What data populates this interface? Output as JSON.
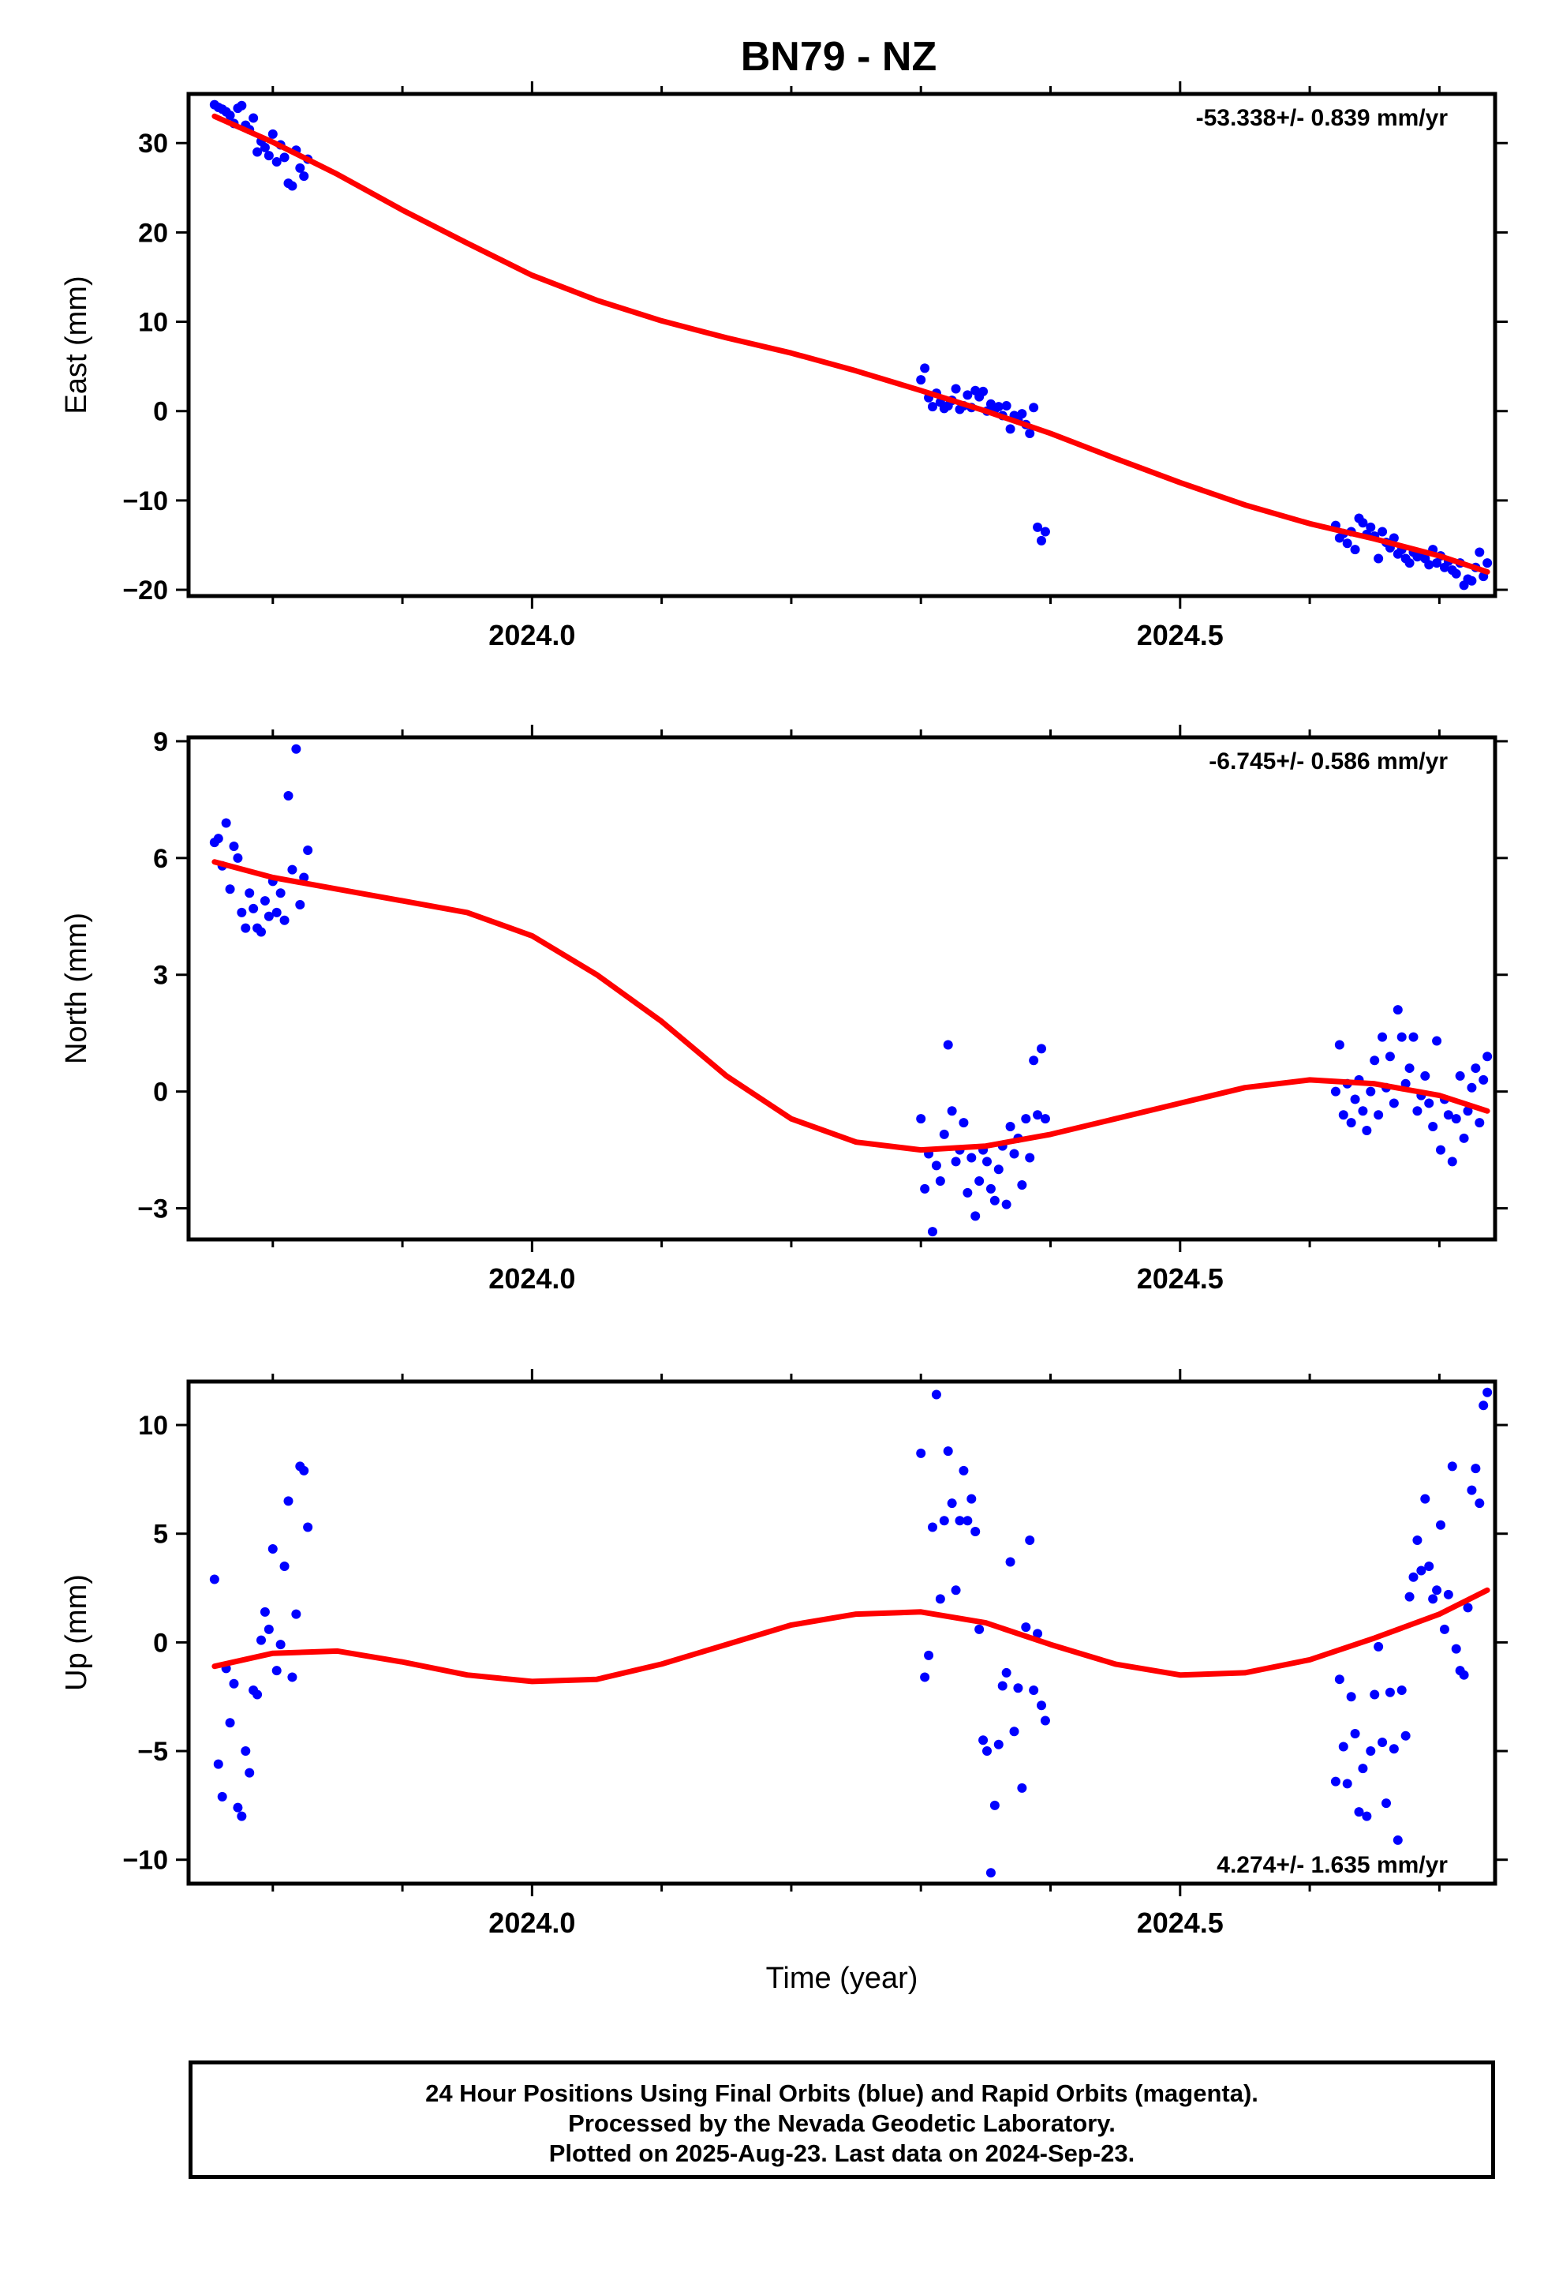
{
  "title": "BN79 - NZ",
  "footer": {
    "line1": "24 Hour Positions Using Final Orbits (blue) and Rapid Orbits (magenta).",
    "line2": "Processed by the Nevada Geodetic Laboratory.",
    "line3": "Plotted on 2025-Aug-23. Last data on 2024-Sep-23."
  },
  "colors": {
    "points": "#0000ff",
    "fit": "#ff0000",
    "axes": "#000000"
  },
  "chart_data": [
    {
      "type": "scatter",
      "ylabel": "East (mm)",
      "xlabel": "",
      "rate_label": "-53.338+/- 0.839 mm/yr",
      "rate_position": "top-right",
      "xlim": [
        2023.735,
        2024.743
      ],
      "ylim": [
        -20.7,
        35.5
      ],
      "xticks": [
        2024.0,
        2024.5
      ],
      "xtick_labels": [
        "2024.0",
        "2024.5"
      ],
      "yticks": [
        30,
        20,
        10,
        0,
        -10,
        -20
      ],
      "ytick_labels": [
        "30",
        "20",
        "10",
        "0",
        "−10",
        "−20"
      ],
      "x": [
        2023.755,
        2023.758,
        2023.761,
        2023.764,
        2023.767,
        2023.77,
        2023.773,
        2023.776,
        2023.779,
        2023.782,
        2023.785,
        2023.788,
        2023.791,
        2023.794,
        2023.797,
        2023.8,
        2023.803,
        2023.806,
        2023.809,
        2023.812,
        2023.815,
        2023.818,
        2023.821,
        2023.824,
        2023.827,
        2024.3,
        2024.303,
        2024.306,
        2024.309,
        2024.312,
        2024.315,
        2024.318,
        2024.321,
        2024.324,
        2024.327,
        2024.33,
        2024.333,
        2024.336,
        2024.339,
        2024.342,
        2024.345,
        2024.348,
        2024.351,
        2024.354,
        2024.357,
        2024.36,
        2024.363,
        2024.366,
        2024.369,
        2024.372,
        2024.375,
        2024.378,
        2024.381,
        2024.384,
        2024.387,
        2024.39,
        2024.393,
        2024.396,
        2024.62,
        2024.623,
        2024.626,
        2024.629,
        2024.632,
        2024.635,
        2024.638,
        2024.641,
        2024.644,
        2024.647,
        2024.65,
        2024.653,
        2024.656,
        2024.659,
        2024.662,
        2024.665,
        2024.668,
        2024.671,
        2024.674,
        2024.677,
        2024.68,
        2024.683,
        2024.686,
        2024.689,
        2024.692,
        2024.695,
        2024.698,
        2024.701,
        2024.704,
        2024.707,
        2024.71,
        2024.713,
        2024.716,
        2024.719,
        2024.722,
        2024.725,
        2024.728,
        2024.731,
        2024.734,
        2024.737
      ],
      "y": [
        34.3,
        34.0,
        33.8,
        33.5,
        33.1,
        32.2,
        33.9,
        34.2,
        32.0,
        31.5,
        32.8,
        29.0,
        30.2,
        29.5,
        28.6,
        31.0,
        27.9,
        29.8,
        28.4,
        25.5,
        25.2,
        29.2,
        27.2,
        26.3,
        28.2,
        3.5,
        4.8,
        1.5,
        0.5,
        2.0,
        1.0,
        0.3,
        0.6,
        1.2,
        2.5,
        0.2,
        0.6,
        1.8,
        0.4,
        2.3,
        1.6,
        2.2,
        0.0,
        0.8,
        0.2,
        0.5,
        -0.5,
        0.6,
        -2.0,
        -0.5,
        -1.0,
        -0.3,
        -1.5,
        -2.5,
        0.4,
        -13.0,
        -14.5,
        -13.5,
        -12.8,
        -14.2,
        -13.7,
        -14.8,
        -13.5,
        -15.5,
        -12.0,
        -12.5,
        -13.8,
        -13.0,
        -14.0,
        -16.5,
        -13.5,
        -14.7,
        -15.3,
        -14.2,
        -16.0,
        -15.5,
        -16.5,
        -17.0,
        -15.8,
        -16.3,
        -16.2,
        -16.5,
        -17.2,
        -15.5,
        -17.0,
        -16.2,
        -17.5,
        -16.8,
        -17.8,
        -18.2,
        -17.0,
        -19.5,
        -18.8,
        -19.0,
        -17.5,
        -15.8,
        -18.5,
        -17.0
      ],
      "fit_x": [
        2023.755,
        2023.8,
        2023.85,
        2023.9,
        2023.95,
        2024.0,
        2024.05,
        2024.1,
        2024.15,
        2024.2,
        2024.25,
        2024.3,
        2024.35,
        2024.4,
        2024.45,
        2024.5,
        2024.55,
        2024.6,
        2024.65,
        2024.7,
        2024.737
      ],
      "fit_y": [
        33.0,
        30.1,
        26.5,
        22.5,
        18.8,
        15.2,
        12.4,
        10.1,
        8.2,
        6.5,
        4.5,
        2.3,
        0.0,
        -2.5,
        -5.3,
        -8.0,
        -10.5,
        -12.6,
        -14.3,
        -16.2,
        -18.0
      ]
    },
    {
      "type": "scatter",
      "ylabel": "North (mm)",
      "xlabel": "",
      "rate_label": "-6.745+/- 0.586 mm/yr",
      "rate_position": "top-right",
      "xlim": [
        2023.735,
        2024.743
      ],
      "ylim": [
        -3.8,
        9.1
      ],
      "xticks": [
        2024.0,
        2024.5
      ],
      "xtick_labels": [
        "2024.0",
        "2024.5"
      ],
      "yticks": [
        9,
        6,
        3,
        0,
        -3
      ],
      "ytick_labels": [
        "9",
        "6",
        "3",
        "0",
        "−3"
      ],
      "x": [
        2023.755,
        2023.758,
        2023.761,
        2023.764,
        2023.767,
        2023.77,
        2023.773,
        2023.776,
        2023.779,
        2023.782,
        2023.785,
        2023.788,
        2023.791,
        2023.794,
        2023.797,
        2023.8,
        2023.803,
        2023.806,
        2023.809,
        2023.812,
        2023.815,
        2023.818,
        2023.821,
        2023.824,
        2023.827,
        2024.3,
        2024.303,
        2024.306,
        2024.309,
        2024.312,
        2024.315,
        2024.318,
        2024.321,
        2024.324,
        2024.327,
        2024.33,
        2024.333,
        2024.336,
        2024.339,
        2024.342,
        2024.345,
        2024.348,
        2024.351,
        2024.354,
        2024.357,
        2024.36,
        2024.363,
        2024.366,
        2024.369,
        2024.372,
        2024.375,
        2024.378,
        2024.381,
        2024.384,
        2024.387,
        2024.39,
        2024.393,
        2024.396,
        2024.62,
        2024.623,
        2024.626,
        2024.629,
        2024.632,
        2024.635,
        2024.638,
        2024.641,
        2024.644,
        2024.647,
        2024.65,
        2024.653,
        2024.656,
        2024.659,
        2024.662,
        2024.665,
        2024.668,
        2024.671,
        2024.674,
        2024.677,
        2024.68,
        2024.683,
        2024.686,
        2024.689,
        2024.692,
        2024.695,
        2024.698,
        2024.701,
        2024.704,
        2024.707,
        2024.71,
        2024.713,
        2024.716,
        2024.719,
        2024.722,
        2024.725,
        2024.728,
        2024.731,
        2024.734,
        2024.737
      ],
      "y": [
        6.4,
        6.5,
        5.8,
        6.9,
        5.2,
        6.3,
        6.0,
        4.6,
        4.2,
        5.1,
        4.7,
        4.2,
        4.1,
        4.9,
        4.5,
        5.4,
        4.6,
        5.1,
        4.4,
        7.6,
        5.7,
        8.8,
        4.8,
        5.5,
        6.2,
        -0.7,
        -2.5,
        -1.6,
        -3.6,
        -1.9,
        -2.3,
        -1.1,
        1.2,
        -0.5,
        -1.8,
        -1.5,
        -0.8,
        -2.6,
        -1.7,
        -3.2,
        -2.3,
        -1.5,
        -1.8,
        -2.5,
        -2.8,
        -2.0,
        -1.4,
        -2.9,
        -0.9,
        -1.6,
        -1.2,
        -2.4,
        -0.7,
        -1.7,
        0.8,
        -0.6,
        1.1,
        -0.7,
        0.0,
        1.2,
        -0.6,
        0.2,
        -0.8,
        -0.2,
        0.3,
        -0.5,
        -1.0,
        0.0,
        0.8,
        -0.6,
        1.4,
        0.1,
        0.9,
        -0.3,
        2.1,
        1.4,
        0.2,
        0.6,
        1.4,
        -0.5,
        -0.1,
        0.4,
        -0.3,
        -0.9,
        1.3,
        -1.5,
        -0.2,
        -0.6,
        -1.8,
        -0.7,
        0.4,
        -1.2,
        -0.5,
        0.1,
        0.6,
        -0.8,
        0.3,
        0.9
      ],
      "fit_x": [
        2023.755,
        2023.8,
        2023.85,
        2023.9,
        2023.95,
        2024.0,
        2024.05,
        2024.1,
        2024.15,
        2024.2,
        2024.25,
        2024.3,
        2024.35,
        2024.4,
        2024.45,
        2024.5,
        2024.55,
        2024.6,
        2024.65,
        2024.7,
        2024.737
      ],
      "fit_y": [
        5.9,
        5.5,
        5.2,
        4.9,
        4.6,
        4.0,
        3.0,
        1.8,
        0.4,
        -0.7,
        -1.3,
        -1.5,
        -1.4,
        -1.1,
        -0.7,
        -0.3,
        0.1,
        0.3,
        0.2,
        -0.1,
        -0.5
      ]
    },
    {
      "type": "scatter",
      "ylabel": "Up (mm)",
      "xlabel": "Time (year)",
      "rate_label": "4.274+/- 1.635 mm/yr",
      "rate_position": "bottom-right",
      "xlim": [
        2023.735,
        2024.743
      ],
      "ylim": [
        -11.1,
        12.0
      ],
      "xticks": [
        2024.0,
        2024.5
      ],
      "xtick_labels": [
        "2024.0",
        "2024.5"
      ],
      "yticks": [
        10,
        5,
        0,
        -5,
        -10
      ],
      "ytick_labels": [
        "10",
        "5",
        "0",
        "−5",
        "−10"
      ],
      "x": [
        2023.755,
        2023.758,
        2023.761,
        2023.764,
        2023.767,
        2023.77,
        2023.773,
        2023.776,
        2023.779,
        2023.782,
        2023.785,
        2023.788,
        2023.791,
        2023.794,
        2023.797,
        2023.8,
        2023.803,
        2023.806,
        2023.809,
        2023.812,
        2023.815,
        2023.818,
        2023.821,
        2023.824,
        2023.827,
        2024.3,
        2024.303,
        2024.306,
        2024.309,
        2024.312,
        2024.315,
        2024.318,
        2024.321,
        2024.324,
        2024.327,
        2024.33,
        2024.333,
        2024.336,
        2024.339,
        2024.342,
        2024.345,
        2024.348,
        2024.351,
        2024.354,
        2024.357,
        2024.36,
        2024.363,
        2024.366,
        2024.369,
        2024.372,
        2024.375,
        2024.378,
        2024.381,
        2024.384,
        2024.387,
        2024.39,
        2024.393,
        2024.396,
        2024.62,
        2024.623,
        2024.626,
        2024.629,
        2024.632,
        2024.635,
        2024.638,
        2024.641,
        2024.644,
        2024.647,
        2024.65,
        2024.653,
        2024.656,
        2024.659,
        2024.662,
        2024.665,
        2024.668,
        2024.671,
        2024.674,
        2024.677,
        2024.68,
        2024.683,
        2024.686,
        2024.689,
        2024.692,
        2024.695,
        2024.698,
        2024.701,
        2024.704,
        2024.707,
        2024.71,
        2024.713,
        2024.716,
        2024.719,
        2024.722,
        2024.725,
        2024.728,
        2024.731,
        2024.734,
        2024.737
      ],
      "y": [
        2.9,
        -5.6,
        -7.1,
        -1.2,
        -3.7,
        -1.9,
        -7.6,
        -8.0,
        -5.0,
        -6.0,
        -2.2,
        -2.4,
        0.1,
        1.4,
        0.6,
        4.3,
        -1.3,
        -0.1,
        3.5,
        6.5,
        -1.6,
        1.3,
        8.1,
        7.9,
        5.3,
        8.7,
        -1.6,
        -0.6,
        5.3,
        11.4,
        2.0,
        5.6,
        8.8,
        6.4,
        2.4,
        5.6,
        7.9,
        5.6,
        6.6,
        5.1,
        0.6,
        -4.5,
        -5.0,
        -10.6,
        -7.5,
        -4.7,
        -2.0,
        -1.4,
        3.7,
        -4.1,
        -2.1,
        -6.7,
        0.7,
        4.7,
        -2.2,
        0.4,
        -2.9,
        -3.6,
        -6.4,
        -1.7,
        -4.8,
        -6.5,
        -2.5,
        -4.2,
        -7.8,
        -5.8,
        -8.0,
        -5.0,
        -2.4,
        -0.2,
        -4.6,
        -7.4,
        -2.3,
        -4.9,
        -9.1,
        -2.2,
        -4.3,
        2.1,
        3.0,
        4.7,
        3.3,
        6.6,
        3.5,
        2.0,
        2.4,
        5.4,
        0.6,
        2.2,
        8.1,
        -0.3,
        -1.3,
        -1.5,
        1.6,
        7.0,
        8.0,
        6.4,
        10.9,
        11.5
      ],
      "fit_x": [
        2023.755,
        2023.8,
        2023.85,
        2023.9,
        2023.95,
        2024.0,
        2024.05,
        2024.1,
        2024.15,
        2024.2,
        2024.25,
        2024.3,
        2024.35,
        2024.4,
        2024.45,
        2024.5,
        2024.55,
        2024.6,
        2024.65,
        2024.7,
        2024.737
      ],
      "fit_y": [
        -1.1,
        -0.5,
        -0.4,
        -0.9,
        -1.5,
        -1.8,
        -1.7,
        -1.0,
        -0.1,
        0.8,
        1.3,
        1.4,
        0.9,
        -0.1,
        -1.0,
        -1.5,
        -1.4,
        -0.8,
        0.2,
        1.3,
        2.4
      ]
    }
  ]
}
